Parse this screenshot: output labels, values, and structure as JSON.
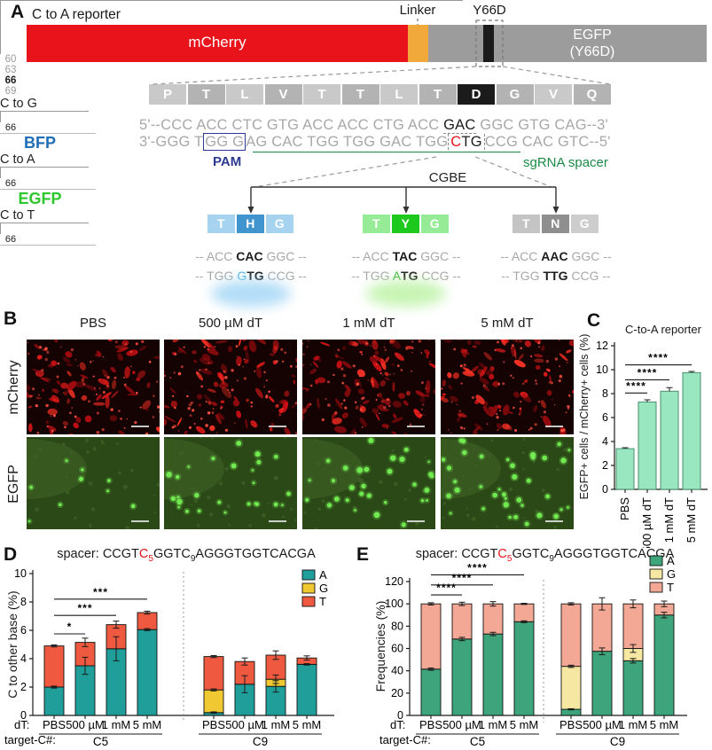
{
  "colors": {
    "mcherry_red": "#e8131b",
    "linker_orange": "#f2a93b",
    "egfp_gray": "#9c9c9c",
    "stripe_black": "#1b1b1b",
    "pam_blue": "#2b3990",
    "sgrna_green": "#1b8a46",
    "seq_red": "#e8131b",
    "bfp_blue": "#1f6eb5",
    "egfp_green": "#2ec72e",
    "c_bar_fill": "#99e7c0",
    "c_bar_edge": "#4a8f6d",
    "d_A": "#1f9e9a",
    "d_G": "#f0c832",
    "d_T": "#ee5940",
    "e_A": "#3da47c",
    "e_G": "#f6e7a2",
    "e_T": "#f3a896"
  },
  "panel_a": {
    "label": "A",
    "title": "C to A reporter",
    "construct": {
      "mcherry": "mCherry",
      "linker": "Linker",
      "y66d": "Y66D",
      "egfp_line1": "EGFP",
      "egfp_line2": "(Y66D)"
    },
    "aa_residues": [
      "P",
      "T",
      "L",
      "V",
      "T",
      "T",
      "L",
      "T",
      "D",
      "G",
      "V",
      "Q"
    ],
    "aa_highlight_index": 8,
    "ruler_numbers": [
      {
        "label": "60",
        "index": 2
      },
      {
        "label": "63",
        "index": 5
      },
      {
        "label": "66",
        "index": 8,
        "dark": true
      },
      {
        "label": "69",
        "index": 11
      }
    ],
    "top_strand_parts": [
      {
        "t": "5'--CCC ACC CTC GTG ACC ACC CTG ACC ",
        "c": "muted"
      },
      {
        "t": "GAC",
        "c": "dark",
        "cls": "gac-br"
      },
      {
        "t": " GGC GTG CAG--3'",
        "c": "muted"
      }
    ],
    "bottom_strand_parts": [
      {
        "t": "3'-GGG T",
        "c": "muted"
      },
      {
        "t": "GG G",
        "c": "muted",
        "cls": "pam-box"
      },
      {
        "t": "AG CAC TGG TGG GAC TGG",
        "c": "muted"
      },
      {
        "t": "CTG",
        "c": "dark",
        "cls": "ctg-br",
        "redfirst": true
      },
      {
        "t": "CCG CAC GTC--5'",
        "c": "muted"
      }
    ],
    "pam_label": "PAM",
    "sgrna_label": "sgRNA spacer",
    "cgbe_label": "CGBE",
    "branches": [
      {
        "arrow_label": "C to G",
        "boxes": [
          "T",
          "H",
          "G"
        ],
        "box_colors": [
          "#a6d3ef",
          "#4095ce",
          "#a6d3ef"
        ],
        "pos_label": "66",
        "codon_top": [
          {
            "t": "-- ACC ",
            "c": "muted"
          },
          {
            "t": "CAC",
            "c": "dark"
          },
          {
            "t": " GGC --",
            "c": "muted"
          }
        ],
        "codon_bottom": [
          {
            "t": "-- TGG ",
            "c": "muted"
          },
          {
            "t": "G",
            "c": "cyan"
          },
          {
            "t": "TG",
            "c": "dark"
          },
          {
            "t": " CCG --",
            "c": "muted"
          }
        ],
        "product": "BFP",
        "product_color": "#1f6eb5",
        "glow": "#9fd4f5"
      },
      {
        "arrow_label": "C to A",
        "boxes": [
          "T",
          "Y",
          "G"
        ],
        "box_colors": [
          "#96ec96",
          "#1ec91e",
          "#96ec96"
        ],
        "pos_label": "66",
        "codon_top": [
          {
            "t": "-- ACC ",
            "c": "muted"
          },
          {
            "t": "TAC",
            "c": "dark"
          },
          {
            "t": " GGC --",
            "c": "muted"
          }
        ],
        "codon_bottom": [
          {
            "t": "-- TGG ",
            "c": "muted"
          },
          {
            "t": "A",
            "c": "green"
          },
          {
            "t": "TG",
            "c": "dark"
          },
          {
            "t": " CCG --",
            "c": "muted"
          }
        ],
        "product": "EGFP",
        "product_color": "#2ec72e",
        "glow": "#b9f2a1"
      },
      {
        "arrow_label": "C to T",
        "boxes": [
          "T",
          "N",
          "G"
        ],
        "box_colors": [
          "#c4c4c4",
          "#8f8f8f",
          "#cdcdcd"
        ],
        "pos_label": "66",
        "codon_top": [
          {
            "t": "-- ACC ",
            "c": "muted"
          },
          {
            "t": "AAC",
            "c": "dark"
          },
          {
            "t": " GGC --",
            "c": "muted"
          }
        ],
        "codon_bottom": [
          {
            "t": "-- TGG ",
            "c": "muted"
          },
          {
            "t": "T",
            "c": "dark"
          },
          {
            "t": "TG",
            "c": "dark"
          },
          {
            "t": " CCG --",
            "c": "muted"
          }
        ],
        "product": "",
        "product_color": "",
        "glow": ""
      }
    ]
  },
  "panel_b": {
    "label": "B",
    "col_headers": [
      "PBS",
      "500 µM dT",
      "1 mM dT",
      "5 mM dT"
    ],
    "row_labels": [
      "mCherry",
      "EGFP"
    ],
    "mcherry_blob_count": 165,
    "egfp_dot_counts": [
      9,
      26,
      30,
      38
    ]
  },
  "chart_data": [
    {
      "panel_label": "C",
      "id": "c",
      "type": "bar",
      "title": "C-to-A reporter",
      "ylabel": "EGFP+ cells / mCherry+ cells (%)",
      "ylim": [
        0,
        12
      ],
      "ystep": 2,
      "categories": [
        "PBS",
        "500 µM dT",
        "1 mM dT",
        "5 mM dT"
      ],
      "values": [
        3.4,
        7.3,
        8.2,
        9.75
      ],
      "errors": [
        0.08,
        0.18,
        0.3,
        0.1
      ],
      "sig": [
        {
          "i": 0,
          "j": 1,
          "stars": "****",
          "y": 8.05
        },
        {
          "i": 0,
          "j": 2,
          "stars": "****",
          "y": 9.15
        },
        {
          "i": 0,
          "j": 3,
          "stars": "****",
          "y": 10.4
        }
      ]
    },
    {
      "panel_label": "D",
      "id": "d",
      "type": "stacked-bar",
      "title_parts": [
        {
          "t": "spacer: CCGT"
        },
        {
          "t": "C",
          "red": true
        },
        {
          "t": "5",
          "red": true,
          "sub": true
        },
        {
          "t": "GGTC"
        },
        {
          "t": "9",
          "sub": true
        },
        {
          "t": "AGGGTGGTCACGA"
        }
      ],
      "ylabel": "C to other base (%)",
      "ylim": [
        0,
        10
      ],
      "ystep": 2,
      "legend": [
        {
          "key": "A",
          "label": "A"
        },
        {
          "key": "G",
          "label": "G"
        },
        {
          "key": "T",
          "label": "T"
        }
      ],
      "series_colors": {
        "A": "#1f9e9a",
        "G": "#f0c832",
        "T": "#ee5940"
      },
      "x_row_label": "dT:",
      "group_row_label": "target-C#:",
      "groups": [
        {
          "label": "C5",
          "from": 0,
          "to": 3
        },
        {
          "label": "C9",
          "from": 4,
          "to": 7
        }
      ],
      "bars": [
        {
          "dt": "PBS",
          "segments": [
            {
              "k": "A",
              "v": 2.0
            },
            {
              "k": "T",
              "v": 2.9
            }
          ],
          "errors": [
            {
              "at": 2.0,
              "e": 0.07
            },
            {
              "at": 4.9,
              "e": 0.07
            }
          ]
        },
        {
          "dt": "500 µM",
          "segments": [
            {
              "k": "A",
              "v": 3.5
            },
            {
              "k": "T",
              "v": 1.65
            }
          ],
          "errors": [
            {
              "at": 3.5,
              "e": 0.6
            },
            {
              "at": 5.15,
              "e": 0.3
            }
          ]
        },
        {
          "dt": "1 mM",
          "segments": [
            {
              "k": "A",
              "v": 4.7
            },
            {
              "k": "T",
              "v": 1.7
            }
          ],
          "errors": [
            {
              "at": 4.7,
              "e": 0.85
            },
            {
              "at": 6.4,
              "e": 0.25
            }
          ]
        },
        {
          "dt": "5 mM",
          "segments": [
            {
              "k": "A",
              "v": 6.05
            },
            {
              "k": "T",
              "v": 1.2
            }
          ],
          "errors": [
            {
              "at": 6.05,
              "e": 0.07
            },
            {
              "at": 7.25,
              "e": 0.1
            }
          ]
        },
        {
          "dt": "PBS",
          "segments": [
            {
              "k": "A",
              "v": 0.2
            },
            {
              "k": "G",
              "v": 1.6
            },
            {
              "k": "T",
              "v": 2.35
            }
          ],
          "errors": [
            {
              "at": 0.2,
              "e": 0.05
            },
            {
              "at": 1.8,
              "e": 0.07
            },
            {
              "at": 4.15,
              "e": 0.07
            }
          ]
        },
        {
          "dt": "500 µM",
          "segments": [
            {
              "k": "A",
              "v": 2.2
            },
            {
              "k": "T",
              "v": 1.6
            }
          ],
          "errors": [
            {
              "at": 2.2,
              "e": 0.6
            },
            {
              "at": 3.8,
              "e": 0.25
            }
          ]
        },
        {
          "dt": "1 mM",
          "segments": [
            {
              "k": "A",
              "v": 2.05
            },
            {
              "k": "G",
              "v": 0.5
            },
            {
              "k": "T",
              "v": 1.7
            }
          ],
          "errors": [
            {
              "at": 2.05,
              "e": 0.4
            },
            {
              "at": 2.55,
              "e": 0.3
            },
            {
              "at": 4.25,
              "e": 0.3
            }
          ]
        },
        {
          "dt": "5 mM",
          "segments": [
            {
              "k": "A",
              "v": 3.6
            },
            {
              "k": "T",
              "v": 0.45
            }
          ],
          "errors": [
            {
              "at": 3.6,
              "e": 0.05
            },
            {
              "at": 4.05,
              "e": 0.15
            }
          ]
        }
      ],
      "sig": [
        {
          "i": 0,
          "j": 1,
          "stars": "*",
          "y": 5.75
        },
        {
          "i": 0,
          "j": 2,
          "stars": "***",
          "y": 7.05
        },
        {
          "i": 0,
          "j": 3,
          "stars": "***",
          "y": 8.2
        }
      ]
    },
    {
      "panel_label": "E",
      "id": "e",
      "type": "stacked-bar",
      "title_parts": [
        {
          "t": "spacer: CCGT"
        },
        {
          "t": "C",
          "red": true
        },
        {
          "t": "5",
          "red": true,
          "sub": true
        },
        {
          "t": "GGTC"
        },
        {
          "t": "9",
          "sub": true
        },
        {
          "t": "AGGGTGGTCACGA"
        }
      ],
      "ylabel": "Frequencies (%)",
      "ylim": [
        0,
        120
      ],
      "ystep": 20,
      "legend": [
        {
          "key": "A",
          "label": "A"
        },
        {
          "key": "G",
          "label": "G"
        },
        {
          "key": "T",
          "label": "T"
        }
      ],
      "series_colors": {
        "A": "#3da47c",
        "G": "#f6e7a2",
        "T": "#f3a896"
      },
      "x_row_label": "dT:",
      "group_row_label": "target-C#:",
      "groups": [
        {
          "label": "C5",
          "from": 0,
          "to": 3
        },
        {
          "label": "C9",
          "from": 4,
          "to": 7
        }
      ],
      "bars": [
        {
          "dt": "PBS",
          "segments": [
            {
              "k": "A",
              "v": 41.5
            },
            {
              "k": "T",
              "v": 58.5
            }
          ],
          "errors": [
            {
              "at": 41.5,
              "e": 1
            },
            {
              "at": 100,
              "e": 1
            }
          ]
        },
        {
          "dt": "500 µM",
          "segments": [
            {
              "k": "A",
              "v": 68.5
            },
            {
              "k": "T",
              "v": 31.5
            }
          ],
          "errors": [
            {
              "at": 68.5,
              "e": 1.5
            },
            {
              "at": 100,
              "e": 1.5
            }
          ]
        },
        {
          "dt": "1 mM",
          "segments": [
            {
              "k": "A",
              "v": 73
            },
            {
              "k": "T",
              "v": 27
            }
          ],
          "errors": [
            {
              "at": 73,
              "e": 1.5
            },
            {
              "at": 100,
              "e": 2
            }
          ]
        },
        {
          "dt": "5 mM",
          "segments": [
            {
              "k": "A",
              "v": 84
            },
            {
              "k": "T",
              "v": 16
            }
          ],
          "errors": [
            {
              "at": 84,
              "e": 0.8
            },
            {
              "at": 100,
              "e": 0.5
            }
          ]
        },
        {
          "dt": "PBS",
          "segments": [
            {
              "k": "A",
              "v": 5.5
            },
            {
              "k": "G",
              "v": 38.5
            },
            {
              "k": "T",
              "v": 56
            }
          ],
          "errors": [
            {
              "at": 5.5,
              "e": 0.5
            },
            {
              "at": 44,
              "e": 1
            },
            {
              "at": 100,
              "e": 1
            }
          ]
        },
        {
          "dt": "500 µM",
          "segments": [
            {
              "k": "A",
              "v": 57.5
            },
            {
              "k": "T",
              "v": 42.5
            }
          ],
          "errors": [
            {
              "at": 57.5,
              "e": 3
            },
            {
              "at": 100,
              "e": 5.5
            }
          ]
        },
        {
          "dt": "1 mM",
          "segments": [
            {
              "k": "A",
              "v": 49
            },
            {
              "k": "G",
              "v": 11
            },
            {
              "k": "T",
              "v": 40
            }
          ],
          "errors": [
            {
              "at": 49,
              "e": 2
            },
            {
              "at": 60,
              "e": 3.5
            },
            {
              "at": 100,
              "e": 3.5
            }
          ]
        },
        {
          "dt": "5 mM",
          "segments": [
            {
              "k": "A",
              "v": 90
            },
            {
              "k": "T",
              "v": 10
            }
          ],
          "errors": [
            {
              "at": 90,
              "e": 2.5
            },
            {
              "at": 100,
              "e": 2.5
            }
          ]
        }
      ],
      "sig": [
        {
          "i": 0,
          "j": 1,
          "stars": "****",
          "y": 108
        },
        {
          "i": 0,
          "j": 2,
          "stars": "****",
          "y": 117
        },
        {
          "i": 0,
          "j": 3,
          "stars": "****",
          "y": 126
        }
      ]
    }
  ]
}
